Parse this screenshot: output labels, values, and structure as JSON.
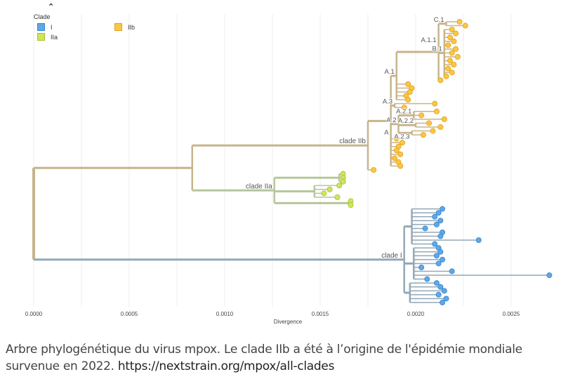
{
  "legend": {
    "title": "Clade",
    "items": [
      {
        "label": "I",
        "color": "#5DA8E8"
      },
      {
        "label": "IIa",
        "color": "#CDE65A"
      },
      {
        "label": "IIb",
        "color": "#F9C742"
      }
    ]
  },
  "axis": {
    "label": "Divergence",
    "ticks": [
      "0.0000",
      "0.0005",
      "0.0010",
      "0.0015",
      "0.0020",
      "0.0025"
    ],
    "tick_values": [
      0,
      0.0005,
      0.001,
      0.0015,
      0.002,
      0.0025
    ],
    "range": [
      0,
      0.0027
    ]
  },
  "branch_colors": {
    "root": "#8FA89E",
    "I": "#93A8B8",
    "IIa": "#B5C79A",
    "IIb": "#C8B48A"
  },
  "caption": {
    "text": "Arbre phylogénétique du virus mpox. Le clade IIb a été à l’origine de l'épidémie mondiale survenue en 2022. ",
    "link": "https://nextstrain.org/mpox/all-clades"
  },
  "chart_data": {
    "type": "tree",
    "xlabel": "Divergence",
    "tree": {
      "d": 0,
      "c": [
        {
          "n": "clade IIb",
          "cl": "IIb",
          "d": 0.00083,
          "c": [
            {
              "d": 0.00175,
              "n": "clade IIb",
              "cl": "IIb",
              "c": [
                {
                  "n": "A",
                  "d": 0.00187,
                  "cl": "IIb",
                  "c": [
                    {
                      "d": 0.0019,
                      "n": "A.1",
                      "cl": "IIb",
                      "c": [
                        {
                          "d": 0.00212,
                          "n": "A.1.1",
                          "cl": "IIb",
                          "c": [
                            {
                              "d": 0.00216,
                              "n": "C.1",
                              "cl": "IIb",
                              "c": [
                                {
                                  "d": 0.00223
                                },
                                {
                                  "d": 0.00226
                                }
                              ]
                            },
                            {
                              "d": 0.00215,
                              "n": "B.1",
                              "cl": "IIb",
                              "c": [
                                {
                                  "d": 0.00219
                                },
                                {
                                  "d": 0.00221
                                },
                                {
                                  "d": 0.00218
                                },
                                {
                                  "d": 0.0022
                                },
                                {
                                  "d": 0.00217
                                },
                                {
                                  "d": 0.00221
                                },
                                {
                                  "d": 0.00219
                                },
                                {
                                  "d": 0.00222
                                },
                                {
                                  "d": 0.00218
                                },
                                {
                                  "d": 0.0022
                                },
                                {
                                  "d": 0.00217
                                },
                                {
                                  "d": 0.00219
                                },
                                {
                                  "d": 0.00216
                                }
                              ]
                            },
                            {
                              "d": 0.00213
                            }
                          ]
                        },
                        {
                          "d": 0.00196
                        },
                        {
                          "d": 0.00198
                        },
                        {
                          "d": 0.00197
                        },
                        {
                          "d": 0.00195
                        },
                        {
                          "d": 0.00196
                        }
                      ]
                    },
                    {
                      "d": 0.00189,
                      "n": "A.3",
                      "cl": "IIb",
                      "c": [
                        {
                          "d": 0.0021
                        },
                        {
                          "d": 0.00194
                        }
                      ]
                    },
                    {
                      "d": 0.00191,
                      "n": "A.2",
                      "cl": "IIb",
                      "c": [
                        {
                          "d": 0.00199,
                          "n": "A.2.1",
                          "cl": "IIb",
                          "c": [
                            {
                              "d": 0.00211
                            },
                            {
                              "d": 0.00203
                            },
                            {
                              "d": 0.00215
                            }
                          ]
                        },
                        {
                          "d": 0.002,
                          "n": "A.2.2",
                          "cl": "IIb",
                          "c": [
                            {
                              "d": 0.00207
                            },
                            {
                              "d": 0.00213
                            }
                          ]
                        },
                        {
                          "d": 0.00198,
                          "n": "A.2.3",
                          "cl": "IIb",
                          "c": [
                            {
                              "d": 0.00209
                            },
                            {
                              "d": 0.00204
                            }
                          ]
                        }
                      ]
                    },
                    {
                      "d": 0.0019
                    },
                    {
                      "d": 0.00193
                    },
                    {
                      "d": 0.00191
                    },
                    {
                      "d": 0.0019
                    },
                    {
                      "d": 0.00192
                    },
                    {
                      "d": 0.00189
                    },
                    {
                      "d": 0.00191
                    },
                    {
                      "d": 0.00192
                    }
                  ]
                },
                {
                  "d": 0.00178
                }
              ]
            },
            {
              "n": "clade IIa",
              "cl": "IIa",
              "d": 0.00126,
              "c": [
                {
                  "d": 0.0016,
                  "c": [
                    {
                      "d": 0.00162
                    },
                    {
                      "d": 0.00162
                    },
                    {
                      "d": 0.00162
                    }
                  ]
                },
                {
                  "d": 0.00147,
                  "c": [
                    {
                      "d": 0.0016
                    },
                    {
                      "d": 0.00155
                    },
                    {
                      "d": 0.00152
                    },
                    {
                      "d": 0.00159
                    }
                  ]
                },
                {
                  "d": 0.00165,
                  "c": [
                    {
                      "d": 0.00166
                    },
                    {
                      "d": 0.00166
                    }
                  ]
                }
              ]
            }
          ]
        },
        {
          "n": "clade I",
          "cl": "I",
          "d": 0.00194,
          "c": [
            {
              "d": 0.00198,
              "c": [
                {
                  "d": 0.00214
                },
                {
                  "d": 0.00212
                },
                {
                  "d": 0.0021
                },
                {
                  "d": 0.00213
                },
                {
                  "d": 0.00211
                },
                {
                  "d": 0.00205
                },
                {
                  "d": 0.00214
                },
                {
                  "d": 0.00213
                },
                {
                  "d": 0.00233
                },
                {
                  "d": 0.0021
                }
              ]
            },
            {
              "d": 0.00199,
              "c": [
                {
                  "d": 0.00212
                },
                {
                  "d": 0.00213
                },
                {
                  "d": 0.00211
                },
                {
                  "d": 0.00214
                },
                {
                  "d": 0.00212
                },
                {
                  "d": 0.00203
                },
                {
                  "d": 0.00219
                },
                {
                  "d": 0.0027
                },
                {
                  "d": 0.00206
                }
              ]
            },
            {
              "d": 0.00197,
              "c": [
                {
                  "d": 0.00211
                },
                {
                  "d": 0.00213
                },
                {
                  "d": 0.00215
                },
                {
                  "d": 0.00212
                },
                {
                  "d": 0.00216
                },
                {
                  "d": 0.00214
                }
              ]
            }
          ]
        }
      ]
    }
  }
}
